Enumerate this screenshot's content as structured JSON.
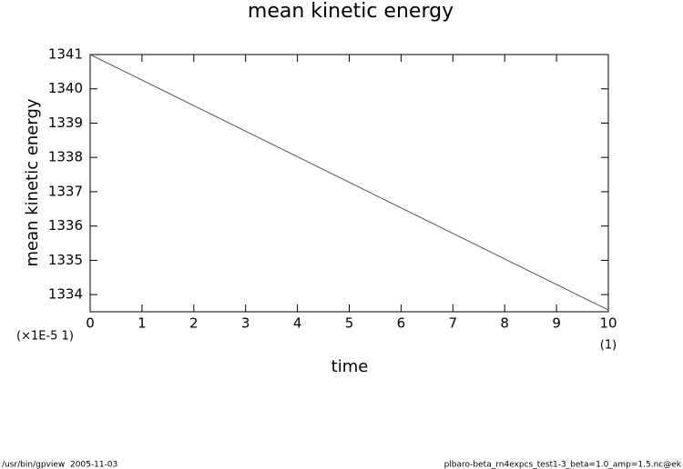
{
  "chart_data": {
    "type": "line",
    "title": "mean kinetic energy",
    "x_label": "time",
    "y_label": "mean kinetic energy",
    "x": [
      0,
      10
    ],
    "series": [
      {
        "name": "mean kinetic energy",
        "color": "#555555",
        "values": [
          1341,
          1333.55
        ]
      }
    ],
    "xlim": [
      0,
      10
    ],
    "xticks": [
      0,
      1,
      2,
      3,
      4,
      5,
      6,
      7,
      8,
      9,
      10
    ],
    "ylim": [
      1333.5,
      1341
    ],
    "yticks": [
      1334,
      1335,
      1336,
      1337,
      1338,
      1339,
      1340,
      1341
    ],
    "grid": false,
    "annotations": [
      "(×1E-5 1)",
      "(1)"
    ],
    "footer_left": "/usr/bin/gpview  2005-11-03",
    "footer_right": "plbaro-beta_rn4expcs_test1-3_beta=1.0_amp=1.5.nc@ek"
  }
}
